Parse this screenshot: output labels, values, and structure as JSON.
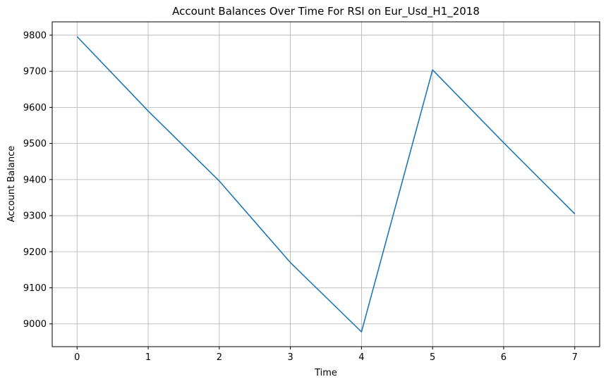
{
  "chart_data": {
    "type": "line",
    "title": "Account Balances Over Time For RSI on Eur_Usd_H1_2018",
    "xlabel": "Time",
    "ylabel": "Account Balance",
    "x": [
      0,
      1,
      2,
      3,
      4,
      5,
      6,
      7
    ],
    "series": [
      {
        "values": [
          9796,
          9590,
          9396,
          9170,
          8978,
          9704,
          9502,
          9305
        ],
        "color": "#1f77b4"
      }
    ],
    "xticks": [
      0,
      1,
      2,
      3,
      4,
      5,
      6,
      7
    ],
    "yticks": [
      9000,
      9100,
      9200,
      9300,
      9400,
      9500,
      9600,
      9700,
      9800
    ],
    "xlim": [
      -0.35,
      7.35
    ],
    "ylim": [
      8937,
      9837
    ],
    "grid": true,
    "legend": "none"
  }
}
